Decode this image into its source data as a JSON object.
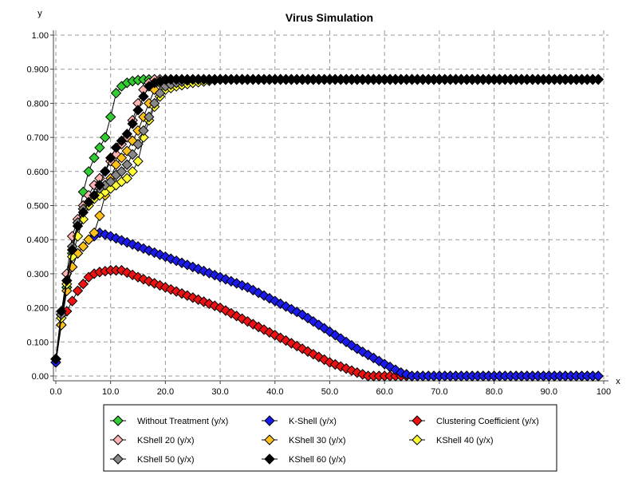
{
  "chart_data": {
    "type": "line",
    "title": "Virus Simulation",
    "xlabel": "x",
    "ylabel": "y",
    "xlim": [
      0,
      100
    ],
    "ylim": [
      0,
      1.0
    ],
    "x_ticks": [
      "0.0",
      "10.0",
      "20.0",
      "30.0",
      "40.0",
      "50.0",
      "60.0",
      "70.0",
      "80.0",
      "90.0",
      "100"
    ],
    "y_ticks": [
      "0.00",
      "0.100",
      "0.200",
      "0.300",
      "0.400",
      "0.500",
      "0.600",
      "0.700",
      "0.800",
      "0.900",
      "1.00"
    ],
    "grid": true,
    "legend_position": "bottom",
    "series": [
      {
        "name": "Without Treatment (y/x)",
        "color": "#33cc33",
        "points": [
          [
            0,
            0.05
          ],
          [
            1,
            0.18
          ],
          [
            2,
            0.26
          ],
          [
            3,
            0.36
          ],
          [
            4,
            0.45
          ],
          [
            5,
            0.54
          ],
          [
            6,
            0.6
          ],
          [
            7,
            0.64
          ],
          [
            8,
            0.67
          ],
          [
            9,
            0.7
          ],
          [
            10,
            0.76
          ],
          [
            11,
            0.83
          ],
          [
            12,
            0.85
          ],
          [
            13,
            0.86
          ],
          [
            14,
            0.865
          ],
          [
            15,
            0.868
          ],
          [
            16,
            0.87
          ],
          [
            17,
            0.87
          ],
          [
            18,
            0.87
          ],
          [
            19,
            0.87
          ],
          [
            20,
            0.87
          ],
          [
            30,
            0.87
          ],
          [
            40,
            0.87
          ],
          [
            50,
            0.87
          ],
          [
            60,
            0.87
          ],
          [
            70,
            0.87
          ],
          [
            80,
            0.87
          ],
          [
            90,
            0.87
          ],
          [
            99,
            0.87
          ]
        ]
      },
      {
        "name": "K-Shell (y/x)",
        "color": "#1a1aee",
        "points": [
          [
            0,
            0.04
          ],
          [
            1,
            0.15
          ],
          [
            2,
            0.26
          ],
          [
            3,
            0.32
          ],
          [
            4,
            0.36
          ],
          [
            5,
            0.38
          ],
          [
            6,
            0.4
          ],
          [
            7,
            0.41
          ],
          [
            8,
            0.42
          ],
          [
            10,
            0.41
          ],
          [
            15,
            0.38
          ],
          [
            20,
            0.35
          ],
          [
            25,
            0.32
          ],
          [
            30,
            0.29
          ],
          [
            35,
            0.26
          ],
          [
            40,
            0.22
          ],
          [
            45,
            0.18
          ],
          [
            50,
            0.13
          ],
          [
            55,
            0.08
          ],
          [
            60,
            0.035
          ],
          [
            63,
            0.01
          ],
          [
            65,
            0.0
          ],
          [
            70,
            0.0
          ],
          [
            80,
            0.0
          ],
          [
            90,
            0.0
          ],
          [
            99,
            0.0
          ]
        ]
      },
      {
        "name": "Clustering Coefficient (y/x)",
        "color": "#ee1111",
        "points": [
          [
            0,
            0.04
          ],
          [
            1,
            0.15
          ],
          [
            2,
            0.19
          ],
          [
            3,
            0.22
          ],
          [
            4,
            0.25
          ],
          [
            5,
            0.27
          ],
          [
            6,
            0.29
          ],
          [
            7,
            0.3
          ],
          [
            8,
            0.305
          ],
          [
            10,
            0.31
          ],
          [
            12,
            0.31
          ],
          [
            15,
            0.29
          ],
          [
            20,
            0.26
          ],
          [
            25,
            0.23
          ],
          [
            30,
            0.2
          ],
          [
            35,
            0.16
          ],
          [
            40,
            0.12
          ],
          [
            45,
            0.08
          ],
          [
            50,
            0.04
          ],
          [
            55,
            0.01
          ],
          [
            57,
            0.0
          ],
          [
            60,
            0.0
          ],
          [
            70,
            0.0
          ],
          [
            80,
            0.0
          ],
          [
            90,
            0.0
          ],
          [
            99,
            0.0
          ]
        ]
      },
      {
        "name": "KShell 20 (y/x)",
        "color": "#ffb3b3",
        "points": [
          [
            0,
            0.05
          ],
          [
            1,
            0.18
          ],
          [
            2,
            0.3
          ],
          [
            3,
            0.41
          ],
          [
            4,
            0.46
          ],
          [
            5,
            0.5
          ],
          [
            6,
            0.53
          ],
          [
            7,
            0.56
          ],
          [
            8,
            0.58
          ],
          [
            9,
            0.6
          ],
          [
            10,
            0.63
          ],
          [
            11,
            0.65
          ],
          [
            12,
            0.68
          ],
          [
            13,
            0.7
          ],
          [
            14,
            0.75
          ],
          [
            15,
            0.8
          ],
          [
            16,
            0.84
          ],
          [
            17,
            0.86
          ],
          [
            18,
            0.87
          ],
          [
            20,
            0.87
          ],
          [
            30,
            0.87
          ],
          [
            40,
            0.87
          ],
          [
            50,
            0.87
          ],
          [
            60,
            0.87
          ],
          [
            70,
            0.87
          ],
          [
            80,
            0.87
          ],
          [
            90,
            0.87
          ],
          [
            99,
            0.87
          ]
        ]
      },
      {
        "name": "KShell 30 (y/x)",
        "color": "#ffc21a",
        "points": [
          [
            0,
            0.05
          ],
          [
            1,
            0.15
          ],
          [
            2,
            0.25
          ],
          [
            3,
            0.32
          ],
          [
            4,
            0.36
          ],
          [
            5,
            0.38
          ],
          [
            6,
            0.4
          ],
          [
            7,
            0.42
          ],
          [
            8,
            0.47
          ],
          [
            9,
            0.53
          ],
          [
            10,
            0.58
          ],
          [
            11,
            0.62
          ],
          [
            12,
            0.64
          ],
          [
            13,
            0.66
          ],
          [
            14,
            0.69
          ],
          [
            15,
            0.72
          ],
          [
            16,
            0.76
          ],
          [
            17,
            0.8
          ],
          [
            18,
            0.84
          ],
          [
            19,
            0.86
          ],
          [
            20,
            0.87
          ],
          [
            30,
            0.87
          ],
          [
            40,
            0.87
          ],
          [
            50,
            0.87
          ],
          [
            60,
            0.87
          ],
          [
            70,
            0.87
          ],
          [
            80,
            0.87
          ],
          [
            90,
            0.87
          ],
          [
            99,
            0.87
          ]
        ]
      },
      {
        "name": "KShell 40 (y/x)",
        "color": "#ffff33",
        "points": [
          [
            0,
            0.05
          ],
          [
            1,
            0.17
          ],
          [
            2,
            0.27
          ],
          [
            3,
            0.35
          ],
          [
            4,
            0.41
          ],
          [
            5,
            0.46
          ],
          [
            6,
            0.5
          ],
          [
            7,
            0.52
          ],
          [
            8,
            0.53
          ],
          [
            9,
            0.54
          ],
          [
            10,
            0.55
          ],
          [
            11,
            0.56
          ],
          [
            12,
            0.57
          ],
          [
            13,
            0.58
          ],
          [
            14,
            0.6
          ],
          [
            15,
            0.63
          ],
          [
            16,
            0.7
          ],
          [
            17,
            0.75
          ],
          [
            18,
            0.79
          ],
          [
            19,
            0.82
          ],
          [
            20,
            0.84
          ],
          [
            22,
            0.85
          ],
          [
            25,
            0.86
          ],
          [
            30,
            0.87
          ],
          [
            40,
            0.87
          ],
          [
            50,
            0.87
          ],
          [
            60,
            0.87
          ],
          [
            70,
            0.87
          ],
          [
            80,
            0.87
          ],
          [
            90,
            0.87
          ],
          [
            99,
            0.87
          ]
        ]
      },
      {
        "name": "KShell 50 (y/x)",
        "color": "#888888",
        "points": [
          [
            0,
            0.05
          ],
          [
            1,
            0.18
          ],
          [
            2,
            0.28
          ],
          [
            3,
            0.38
          ],
          [
            4,
            0.45
          ],
          [
            5,
            0.49
          ],
          [
            6,
            0.51
          ],
          [
            7,
            0.53
          ],
          [
            8,
            0.55
          ],
          [
            9,
            0.56
          ],
          [
            10,
            0.57
          ],
          [
            11,
            0.59
          ],
          [
            12,
            0.6
          ],
          [
            13,
            0.62
          ],
          [
            14,
            0.65
          ],
          [
            15,
            0.68
          ],
          [
            16,
            0.72
          ],
          [
            17,
            0.76
          ],
          [
            18,
            0.8
          ],
          [
            19,
            0.83
          ],
          [
            20,
            0.85
          ],
          [
            22,
            0.86
          ],
          [
            25,
            0.87
          ],
          [
            30,
            0.87
          ],
          [
            40,
            0.87
          ],
          [
            50,
            0.87
          ],
          [
            60,
            0.87
          ],
          [
            70,
            0.87
          ],
          [
            80,
            0.87
          ],
          [
            90,
            0.87
          ],
          [
            99,
            0.87
          ]
        ]
      },
      {
        "name": "KShell 60 (y/x)",
        "color": "#000000",
        "points": [
          [
            0,
            0.05
          ],
          [
            1,
            0.19
          ],
          [
            2,
            0.28
          ],
          [
            3,
            0.37
          ],
          [
            4,
            0.44
          ],
          [
            5,
            0.48
          ],
          [
            6,
            0.51
          ],
          [
            7,
            0.53
          ],
          [
            8,
            0.56
          ],
          [
            9,
            0.6
          ],
          [
            10,
            0.64
          ],
          [
            11,
            0.67
          ],
          [
            12,
            0.69
          ],
          [
            13,
            0.71
          ],
          [
            14,
            0.74
          ],
          [
            15,
            0.78
          ],
          [
            16,
            0.82
          ],
          [
            17,
            0.85
          ],
          [
            18,
            0.86
          ],
          [
            20,
            0.87
          ],
          [
            30,
            0.87
          ],
          [
            40,
            0.87
          ],
          [
            50,
            0.87
          ],
          [
            60,
            0.87
          ],
          [
            70,
            0.87
          ],
          [
            80,
            0.87
          ],
          [
            90,
            0.87
          ],
          [
            99,
            0.87
          ]
        ]
      }
    ]
  }
}
